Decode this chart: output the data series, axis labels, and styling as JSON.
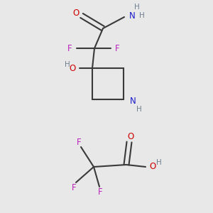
{
  "bg_color": "#e8e8e8",
  "atom_colors": {
    "C": "#000000",
    "N": "#1a1acc",
    "O": "#cc0000",
    "F": "#bb22bb",
    "H": "#708090",
    "bond": "#3a3a3a"
  },
  "figsize": [
    3.0,
    3.0
  ],
  "dpi": 100
}
